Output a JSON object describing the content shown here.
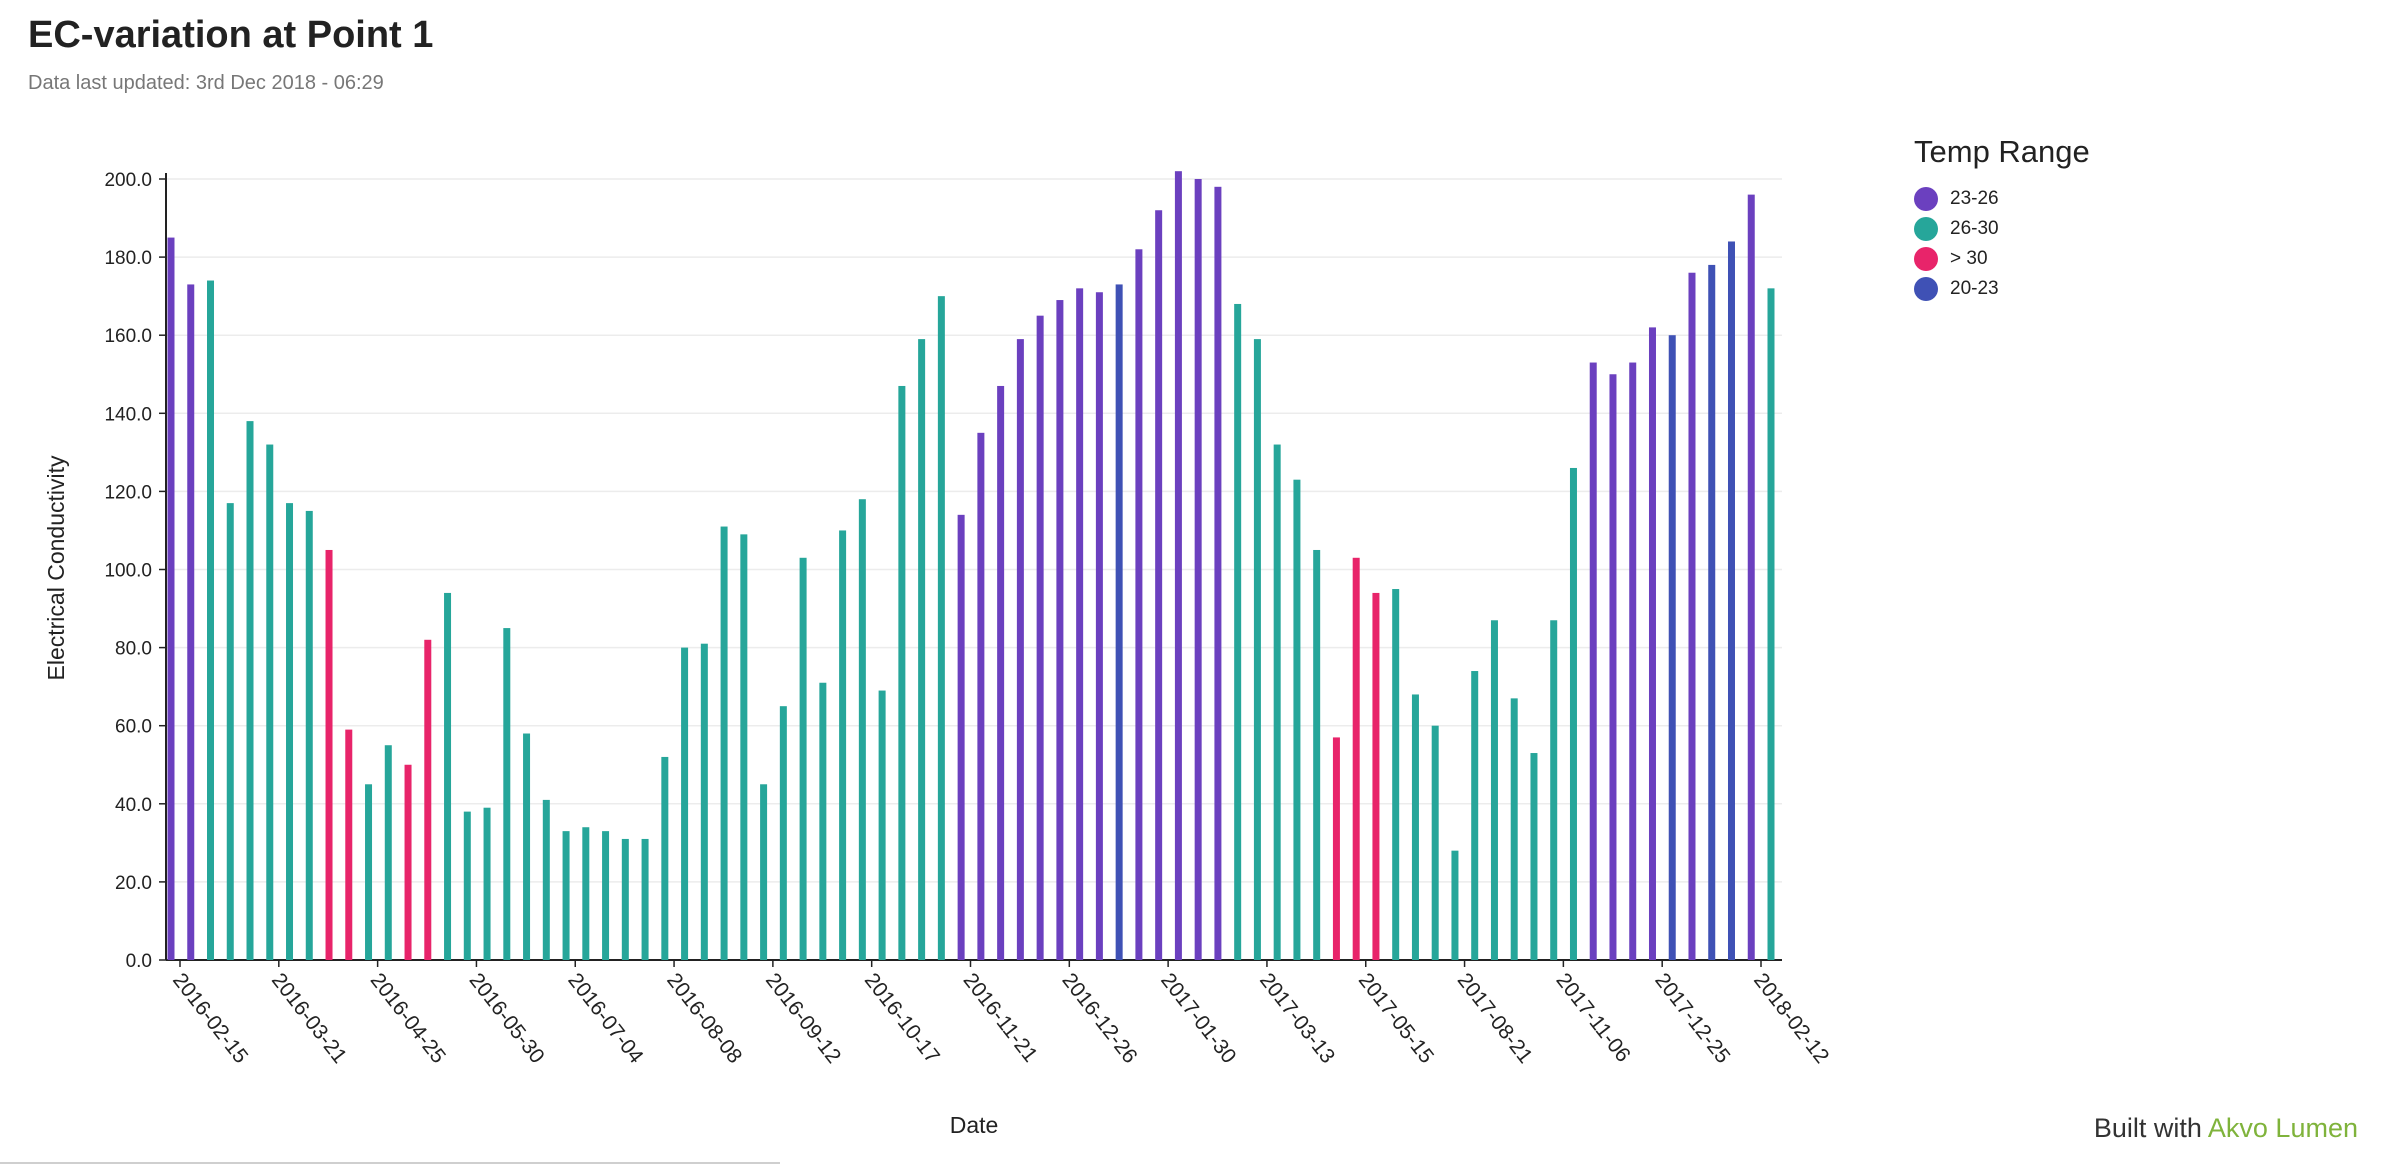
{
  "header": {
    "title": "EC-variation at Point 1",
    "subtitle": "Data last updated: 3rd Dec 2018 - 06:29"
  },
  "legend": {
    "title": "Temp Range",
    "items": [
      {
        "label": "23-26",
        "color": "#6b40bf"
      },
      {
        "label": "26-30",
        "color": "#26a69a"
      },
      {
        "label": "> 30",
        "color": "#e8246a"
      },
      {
        "label": "20-23",
        "color": "#3f51b5"
      }
    ]
  },
  "footer": {
    "prefix": "Built with ",
    "link": "Akvo Lumen"
  },
  "chart_data": {
    "type": "bar",
    "xlabel": "Date",
    "ylabel": "Electrical Conductivity",
    "ylim": [
      0,
      200
    ],
    "yticks": [
      "0.0",
      "20.0",
      "40.0",
      "60.0",
      "80.0",
      "100.0",
      "120.0",
      "140.0",
      "160.0",
      "180.0",
      "200.0"
    ],
    "xticks": [
      "2016-02-15",
      "2016-03-21",
      "2016-04-25",
      "2016-05-30",
      "2016-07-04",
      "2016-08-08",
      "2016-09-12",
      "2016-10-17",
      "2016-11-21",
      "2016-12-26",
      "2017-01-30",
      "2017-03-13",
      "2017-05-15",
      "2017-08-21",
      "2017-11-06",
      "2017-12-25",
      "2018-02-12"
    ],
    "grid": true,
    "legend_position": "top-right",
    "series_colors": {
      "23-26": "#6b40bf",
      "26-30": "#26a69a",
      "> 30": "#e8246a",
      "20-23": "#3f51b5"
    },
    "values": [
      185,
      173,
      174,
      117,
      138,
      132,
      117,
      115,
      105,
      59,
      45,
      55,
      50,
      82,
      94,
      38,
      39,
      85,
      58,
      41,
      33,
      34,
      33,
      31,
      31,
      52,
      80,
      81,
      111,
      109,
      45,
      65,
      103,
      71,
      110,
      118,
      69,
      147,
      159,
      170,
      114,
      135,
      147,
      159,
      165,
      169,
      172,
      171,
      173,
      182,
      192,
      202,
      200,
      198,
      168,
      159,
      132,
      123,
      105,
      57,
      103,
      94,
      95,
      68,
      60,
      28,
      74,
      87,
      67,
      53,
      87,
      126,
      153,
      150,
      153,
      162,
      160,
      176,
      178,
      184,
      196,
      172
    ],
    "ranges": [
      "23-26",
      "23-26",
      "26-30",
      "26-30",
      "26-30",
      "26-30",
      "26-30",
      "26-30",
      "> 30",
      "> 30",
      "26-30",
      "26-30",
      "> 30",
      "> 30",
      "26-30",
      "26-30",
      "26-30",
      "26-30",
      "26-30",
      "26-30",
      "26-30",
      "26-30",
      "26-30",
      "26-30",
      "26-30",
      "26-30",
      "26-30",
      "26-30",
      "26-30",
      "26-30",
      "26-30",
      "26-30",
      "26-30",
      "26-30",
      "26-30",
      "26-30",
      "26-30",
      "26-30",
      "26-30",
      "26-30",
      "23-26",
      "23-26",
      "23-26",
      "23-26",
      "23-26",
      "23-26",
      "23-26",
      "23-26",
      "20-23",
      "23-26",
      "23-26",
      "23-26",
      "23-26",
      "23-26",
      "26-30",
      "26-30",
      "26-30",
      "26-30",
      "26-30",
      "> 30",
      "> 30",
      "> 30",
      "26-30",
      "26-30",
      "26-30",
      "26-30",
      "26-30",
      "26-30",
      "26-30",
      "26-30",
      "26-30",
      "26-30",
      "23-26",
      "23-26",
      "23-26",
      "23-26",
      "20-23",
      "23-26",
      "20-23",
      "20-23",
      "23-26",
      "26-30"
    ]
  }
}
